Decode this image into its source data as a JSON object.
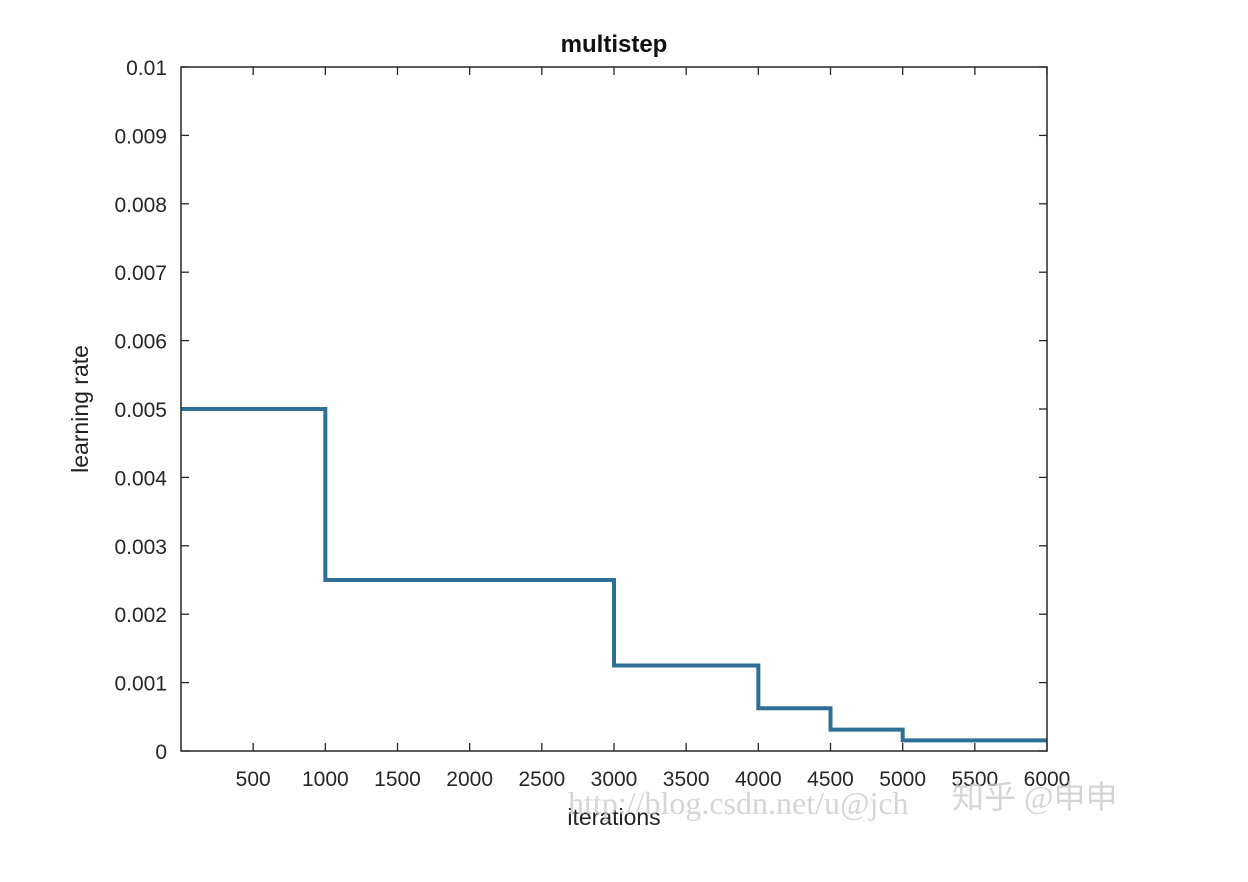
{
  "chart_data": {
    "type": "line",
    "title": "multistep",
    "xlabel": "iterations",
    "ylabel": "learning rate",
    "xlim": [
      0,
      6000
    ],
    "ylim": [
      0,
      0.01
    ],
    "x_ticks": [
      500,
      1000,
      1500,
      2000,
      2500,
      3000,
      3500,
      4000,
      4500,
      5000,
      5500,
      6000
    ],
    "x_tick_labels": [
      "500",
      "1000",
      "1500",
      "2000",
      "2500",
      "3000",
      "3500",
      "4000",
      "4500",
      "5000",
      "5500",
      "6000"
    ],
    "y_ticks": [
      0,
      0.001,
      0.002,
      0.003,
      0.004,
      0.005,
      0.006,
      0.007,
      0.008,
      0.009,
      0.01
    ],
    "y_tick_labels": [
      "0",
      "0.001",
      "0.002",
      "0.003",
      "0.004",
      "0.005",
      "0.006",
      "0.007",
      "0.008",
      "0.009",
      "0.01"
    ],
    "grid": false,
    "box": true,
    "series": [
      {
        "color": "#2e6f95",
        "step": "post",
        "x": [
          0,
          1000,
          3000,
          4000,
          4500,
          5000,
          6000
        ],
        "y": [
          0.005,
          0.0025,
          0.00125,
          0.000625,
          0.0003125,
          0.00015625,
          0.00015625
        ]
      }
    ]
  },
  "watermark": {
    "text": "http://blog.csdn.net/u@jch",
    "cn_text": "知乎 @申申"
  }
}
